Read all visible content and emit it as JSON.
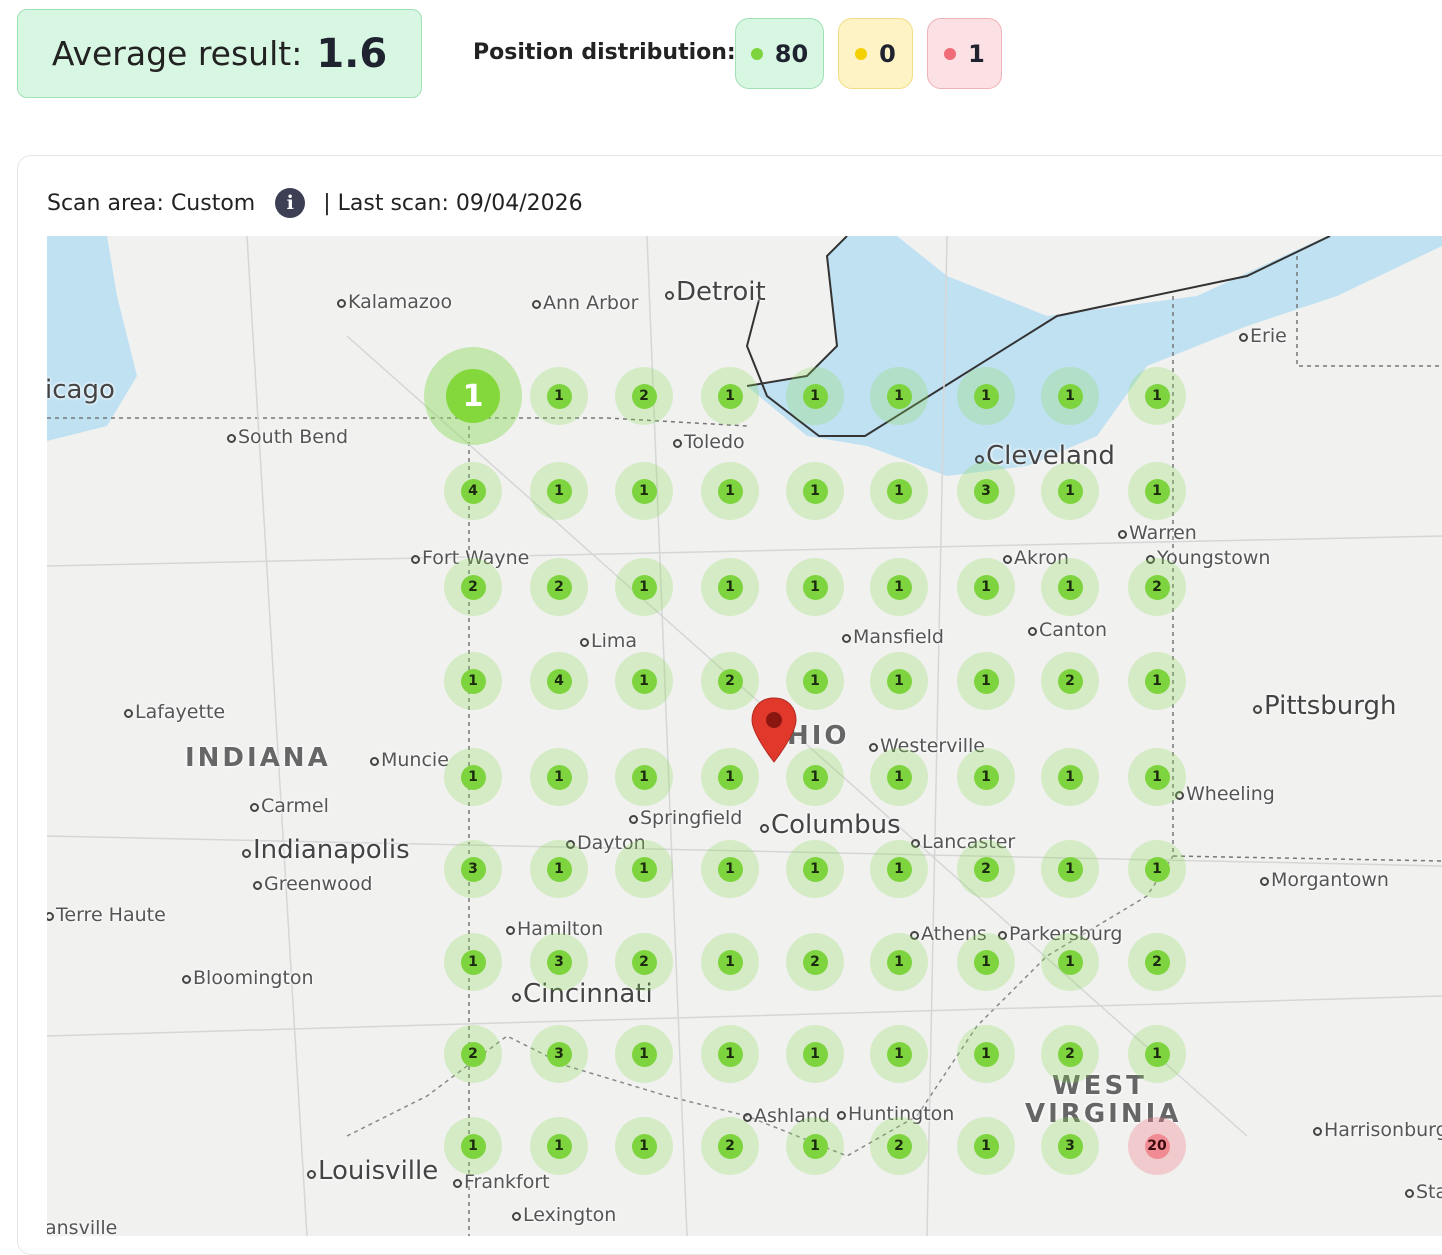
{
  "summary": {
    "average_label": "Average result:",
    "average_value": "1.6",
    "distribution_label": "Position distribution:",
    "distribution": [
      {
        "count": "80",
        "color": "#7ed43e"
      },
      {
        "count": "0",
        "color": "#f5d000"
      },
      {
        "count": "1",
        "color": "#ef6b77"
      }
    ]
  },
  "scan": {
    "area_label": "Scan area: Custom",
    "last_scan_label": "| Last scan: 09/04/2026",
    "info_icon": "info-icon"
  },
  "map": {
    "cities": [
      "Kalamazoo",
      "Ann Arbor",
      "Detroit",
      "Erie",
      "icago",
      "South Bend",
      "Toledo",
      "Cleveland",
      "Warren",
      "Fort Wayne",
      "Akron",
      "Youngstown",
      "Lima",
      "Mansfield",
      "Canton",
      "Lafayette",
      "Pittsburgh",
      "INDIANA",
      "HIO",
      "Muncie",
      "Westerville",
      "Wheeling",
      "Carmel",
      "Springfield",
      "Columbus",
      "Indianapolis",
      "Dayton",
      "Lancaster",
      "Morgantown",
      "Greenwood",
      "Terre Haute",
      "Hamilton",
      "Athens",
      "Parkersburg",
      "Bloomington",
      "Cincinnati",
      "WEST",
      "VIRGINIA",
      "Ashland",
      "Huntington",
      "Harrisonburg",
      "Louisville",
      "Frankfort",
      "Lexington",
      "ansville",
      "Sta"
    ],
    "grid": [
      [
        1,
        1,
        2,
        1,
        1,
        1,
        1,
        1,
        1
      ],
      [
        4,
        1,
        1,
        1,
        1,
        1,
        3,
        1,
        1
      ],
      [
        2,
        2,
        1,
        1,
        1,
        1,
        1,
        1,
        2
      ],
      [
        1,
        4,
        1,
        2,
        1,
        1,
        1,
        2,
        1
      ],
      [
        1,
        1,
        1,
        1,
        1,
        1,
        1,
        1,
        1
      ],
      [
        3,
        1,
        1,
        1,
        1,
        1,
        2,
        1,
        1
      ],
      [
        1,
        3,
        2,
        1,
        2,
        1,
        1,
        1,
        2
      ],
      [
        2,
        3,
        1,
        1,
        1,
        1,
        1,
        2,
        1
      ],
      [
        1,
        1,
        1,
        2,
        1,
        2,
        1,
        3,
        20
      ]
    ],
    "colors": {
      "good": "#7ed43e",
      "bad": "#ef6b77",
      "water": "#bfe1f2"
    }
  }
}
